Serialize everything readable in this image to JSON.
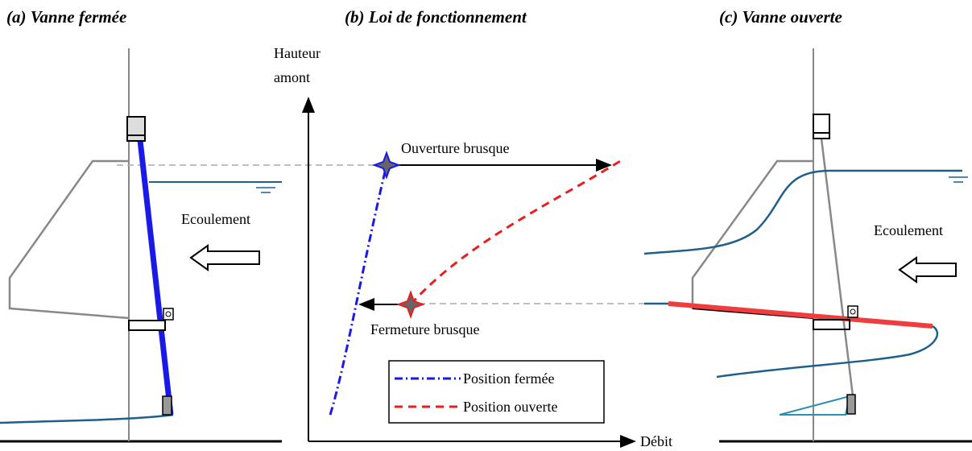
{
  "panels": [
    {
      "title": "(a) Vanne fermée",
      "annotation": "Ecoulement"
    },
    {
      "title": "(b) Loi de fonctionnement",
      "y_axis_label": [
        "Hauteur",
        "amont"
      ],
      "x_axis_label": "Débit",
      "annotations": [
        "Ouverture brusque",
        "Fermeture brusque"
      ],
      "legend": [
        "Position fermée",
        "Position ouverte"
      ]
    },
    {
      "title": "(c) Vanne ouverte",
      "annotation": "Ecoulement"
    }
  ]
}
